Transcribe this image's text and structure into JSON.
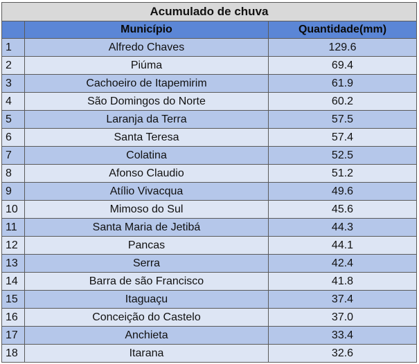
{
  "table": {
    "title": "Acumulado de chuva",
    "headers": {
      "index": "",
      "municipio": "Município",
      "quantidade": "Quantidade(mm)"
    },
    "rows": [
      {
        "n": "1",
        "municipio": "Alfredo Chaves",
        "quantidade": "129.6"
      },
      {
        "n": "2",
        "municipio": "Piúma",
        "quantidade": "69.4"
      },
      {
        "n": "3",
        "municipio": "Cachoeiro de Itapemirim",
        "quantidade": "61.9"
      },
      {
        "n": "4",
        "municipio": "São Domingos do Norte",
        "quantidade": "60.2"
      },
      {
        "n": "5",
        "municipio": "Laranja da Terra",
        "quantidade": "57.5"
      },
      {
        "n": "6",
        "municipio": "Santa Teresa",
        "quantidade": "57.4"
      },
      {
        "n": "7",
        "municipio": "Colatina",
        "quantidade": "52.5"
      },
      {
        "n": "8",
        "municipio": "Afonso Claudio",
        "quantidade": "51.2"
      },
      {
        "n": "9",
        "municipio": "Atílio Vivacqua",
        "quantidade": "49.6"
      },
      {
        "n": "10",
        "municipio": "Mimoso do Sul",
        "quantidade": "45.6"
      },
      {
        "n": "11",
        "municipio": "Santa Maria de Jetibá",
        "quantidade": "44.3"
      },
      {
        "n": "12",
        "municipio": "Pancas",
        "quantidade": "44.1"
      },
      {
        "n": "13",
        "municipio": "Serra",
        "quantidade": "42.4"
      },
      {
        "n": "14",
        "municipio": "Barra de são Francisco",
        "quantidade": "41.8"
      },
      {
        "n": "15",
        "municipio": "Itaguaçu",
        "quantidade": "37.4"
      },
      {
        "n": "16",
        "municipio": "Conceição do Castelo",
        "quantidade": "37.0"
      },
      {
        "n": "17",
        "municipio": "Anchieta",
        "quantidade": "33.4"
      },
      {
        "n": "18",
        "municipio": "Itarana",
        "quantidade": "32.6"
      }
    ]
  },
  "colors": {
    "title_bg": "#d9d9d9",
    "header_bg": "#5b86d6",
    "row_dark": "#b5c7ea",
    "row_light": "#dde5f4",
    "border": "#5a5a5a"
  }
}
